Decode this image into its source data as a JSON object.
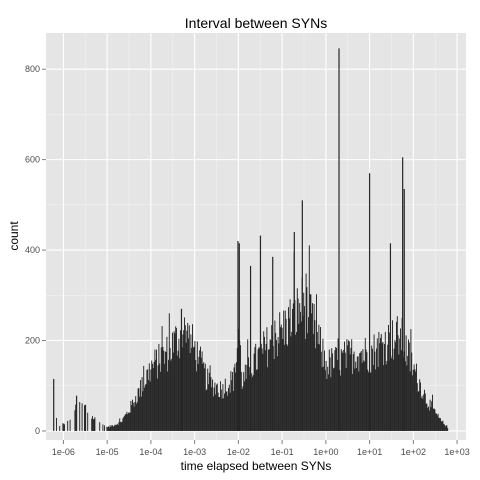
{
  "chart_data": {
    "type": "bar",
    "title": "Interval between SYNs",
    "xlabel": "time elapsed between SYNs",
    "ylabel": "count",
    "x_scale": "log10",
    "xlim": [
      4e-07,
      1600.0
    ],
    "ylim": [
      -20,
      880
    ],
    "x_ticks": [
      "1e-06",
      "1e-05",
      "1e-04",
      "1e-03",
      "1e-02",
      "1e-01",
      "1e+00",
      "1e+01",
      "1e+02",
      "1e+03"
    ],
    "y_ticks": [
      0,
      200,
      400,
      600,
      800
    ],
    "grid": true,
    "background": "#e5e5e5",
    "gridline_color": "#ffffff",
    "bar_color": "#262626",
    "histogram_profile": [
      {
        "x": 6e-07,
        "count": 115
      },
      {
        "x": 7e-07,
        "count": 5
      },
      {
        "x": 1.5e-06,
        "count": 30
      },
      {
        "x": 2e-06,
        "count": 75
      },
      {
        "x": 3e-06,
        "count": 55
      },
      {
        "x": 4e-06,
        "count": 35
      },
      {
        "x": 6e-06,
        "count": 22
      },
      {
        "x": 1e-05,
        "count": 8
      },
      {
        "x": 2e-05,
        "count": 20
      },
      {
        "x": 3e-05,
        "count": 45
      },
      {
        "x": 6e-05,
        "count": 100
      },
      {
        "x": 0.0001,
        "count": 145
      },
      {
        "x": 0.0002,
        "count": 170
      },
      {
        "x": 0.0004,
        "count": 210
      },
      {
        "x": 0.0006,
        "count": 225
      },
      {
        "x": 0.001,
        "count": 185
      },
      {
        "x": 0.002,
        "count": 110
      },
      {
        "x": 0.004,
        "count": 95
      },
      {
        "x": 0.008,
        "count": 120
      },
      {
        "x": 0.01,
        "count": 230
      },
      {
        "x": 0.012,
        "count": 110
      },
      {
        "x": 0.02,
        "count": 150
      },
      {
        "x": 0.05,
        "count": 200
      },
      {
        "x": 0.1,
        "count": 230
      },
      {
        "x": 0.2,
        "count": 265
      },
      {
        "x": 0.3,
        "count": 290
      },
      {
        "x": 0.5,
        "count": 240
      },
      {
        "x": 1.0,
        "count": 150
      },
      {
        "x": 2.0,
        "count": 160
      },
      {
        "x": 5.0,
        "count": 180
      },
      {
        "x": 10.0,
        "count": 175
      },
      {
        "x": 20.0,
        "count": 200
      },
      {
        "x": 50.0,
        "count": 215
      },
      {
        "x": 100.0,
        "count": 140
      },
      {
        "x": 200.0,
        "count": 70
      },
      {
        "x": 400.0,
        "count": 25
      },
      {
        "x": 600.0,
        "count": 8
      }
    ],
    "spikes": [
      {
        "x": 6e-07,
        "count": 115
      },
      {
        "x": 2e-06,
        "count": 78
      },
      {
        "x": 3.2e-06,
        "count": 58
      },
      {
        "x": 0.0005,
        "count": 270
      },
      {
        "x": 0.0098,
        "count": 420
      },
      {
        "x": 0.0105,
        "count": 415
      },
      {
        "x": 0.019,
        "count": 365
      },
      {
        "x": 0.032,
        "count": 432
      },
      {
        "x": 0.061,
        "count": 385
      },
      {
        "x": 0.19,
        "count": 440
      },
      {
        "x": 0.29,
        "count": 510
      },
      {
        "x": 2.0,
        "count": 846
      },
      {
        "x": 10.0,
        "count": 570
      },
      {
        "x": 30.0,
        "count": 415
      },
      {
        "x": 57.0,
        "count": 605
      },
      {
        "x": 62.0,
        "count": 535
      }
    ]
  }
}
